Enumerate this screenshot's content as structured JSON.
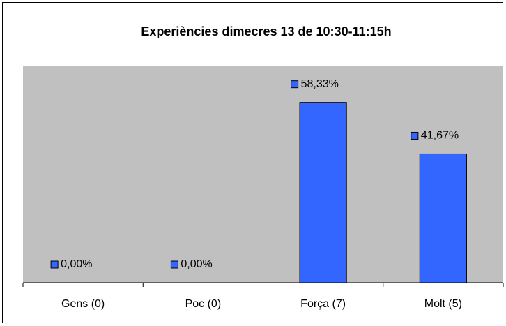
{
  "chart_data": {
    "type": "bar",
    "title": "Experiències dimecres 13 de 10:30-11:15h",
    "categories": [
      "Gens (0)",
      "Poc (0)",
      "Força (7)",
      "Molt (5)"
    ],
    "values": [
      0,
      0,
      58.33,
      41.67
    ],
    "value_labels": [
      "0,00%",
      "0,00%",
      "58,33%",
      "41,67%"
    ],
    "color": "#3366ff",
    "ylim": [
      0,
      70
    ]
  }
}
